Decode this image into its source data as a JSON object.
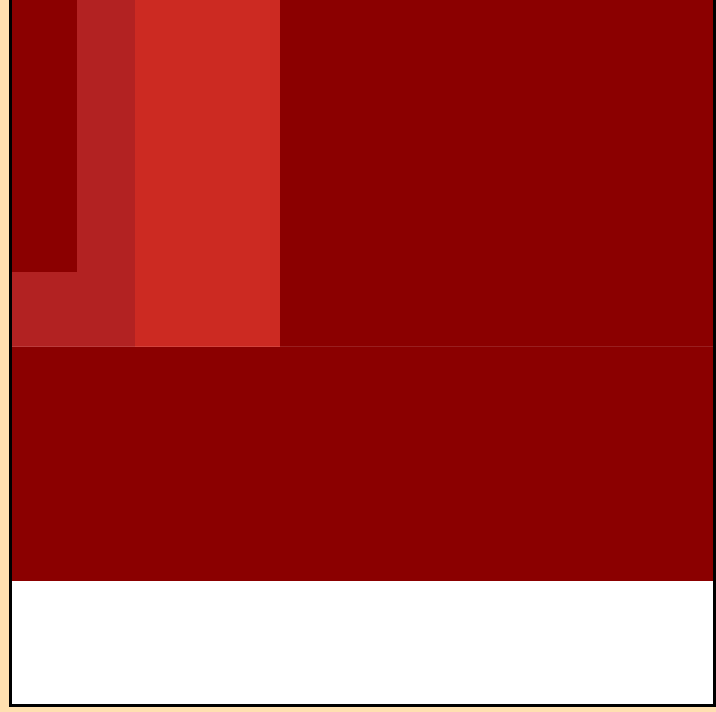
{
  "colors": {
    "page_background": "#FFE0B0",
    "frame": "#000000",
    "dark_red": "#8B0000",
    "firebrick": "#B22222",
    "bright_red": "#CC2A22",
    "white": "#FFFFFF"
  },
  "blocks": [
    {
      "name": "top-left-block",
      "color_key": "dark_red"
    },
    {
      "name": "middle-strip-block",
      "color_key": "firebrick"
    },
    {
      "name": "bottom-notch-block",
      "color_key": "firebrick"
    },
    {
      "name": "center-block",
      "color_key": "bright_red"
    },
    {
      "name": "right-block",
      "color_key": "dark_red"
    },
    {
      "name": "wide-bottom-block",
      "color_key": "dark_red"
    },
    {
      "name": "white-bottom-block",
      "color_key": "white"
    }
  ]
}
